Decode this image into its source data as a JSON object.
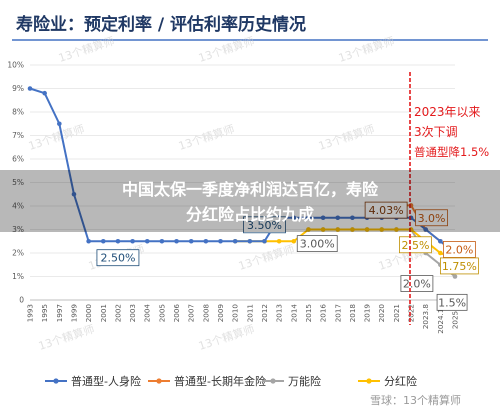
{
  "header": {
    "title": "寿险业：预定利率 / 评估利率历史情况"
  },
  "overlay": {
    "line1": "中国太保一季度净利润达百亿，寿险",
    "line2": "分红险占比约九成"
  },
  "watermark": {
    "text": "13个精算师",
    "footer": "雪球：13个精算师"
  },
  "chart_data": {
    "type": "line",
    "categories": [
      "1993",
      "1995",
      "1997",
      "1999",
      "2000",
      "2001",
      "2002",
      "2003",
      "2004",
      "2005",
      "2006",
      "2007",
      "2008",
      "2009",
      "2010",
      "2011",
      "2012",
      "2013",
      "2014",
      "2015",
      "2016",
      "2017",
      "2018",
      "2019",
      "2020",
      "2021",
      "2022",
      "2023.8",
      "2024.10",
      "2025.9"
    ],
    "y_ticks": [
      "0",
      "1%",
      "2%",
      "3%",
      "4%",
      "5%",
      "6%",
      "7%",
      "8%",
      "9%",
      "10%"
    ],
    "ylim": [
      0,
      10
    ],
    "series": [
      {
        "name": "普通型-人身险",
        "color": "#4472c4",
        "values": [
          9.0,
          8.8,
          7.5,
          4.5,
          2.5,
          2.5,
          2.5,
          2.5,
          2.5,
          2.5,
          2.5,
          2.5,
          2.5,
          2.5,
          2.5,
          2.5,
          2.5,
          3.5,
          3.5,
          3.5,
          3.5,
          3.5,
          3.5,
          3.5,
          3.5,
          3.5,
          3.5,
          3.0,
          2.5,
          2.0
        ]
      },
      {
        "name": "普通型-长期年金险",
        "color": "#ed7d31",
        "values": [
          null,
          null,
          null,
          null,
          null,
          null,
          null,
          null,
          null,
          null,
          null,
          null,
          null,
          null,
          null,
          null,
          null,
          null,
          null,
          null,
          null,
          null,
          null,
          null,
          4.025,
          4.025,
          4.025,
          3.0,
          2.5,
          2.0
        ]
      },
      {
        "name": "万能险",
        "color": "#a5a5a5",
        "values": [
          null,
          null,
          null,
          null,
          null,
          null,
          null,
          null,
          null,
          null,
          null,
          null,
          null,
          null,
          null,
          null,
          null,
          null,
          null,
          3.0,
          3.0,
          3.0,
          3.0,
          3.0,
          3.0,
          3.0,
          3.0,
          2.0,
          1.5,
          1.0
        ]
      },
      {
        "name": "分红险",
        "color": "#ffc000",
        "values": [
          null,
          null,
          null,
          null,
          null,
          null,
          null,
          null,
          null,
          null,
          null,
          null,
          null,
          null,
          2.5,
          2.5,
          2.5,
          2.5,
          2.5,
          3.0,
          3.0,
          3.0,
          3.0,
          3.0,
          3.0,
          3.0,
          3.0,
          2.5,
          2.0,
          1.75
        ]
      }
    ],
    "annotations": [
      {
        "text": "2.50%",
        "color": "#1f4e79"
      },
      {
        "text": "3.50%",
        "color": "#1f4e79"
      },
      {
        "text": "4.03%",
        "color": "#843c0c"
      },
      {
        "text": "3.00%",
        "color": "#595959"
      },
      {
        "text": "3.0%",
        "color": "#c55a11"
      },
      {
        "text": "2.5%",
        "color": "#bf8f00"
      },
      {
        "text": "2.0%",
        "color": "#595959"
      },
      {
        "text": "2.0%",
        "color": "#c55a11"
      },
      {
        "text": "1.75%",
        "color": "#bf8f00"
      },
      {
        "text": "1.5%",
        "color": "#595959"
      }
    ],
    "callout": {
      "lines": [
        "2023年以来",
        "3次下调",
        "普通型降1.5%"
      ],
      "color": "#e31a1c"
    },
    "grid": true,
    "legend_position": "bottom"
  }
}
